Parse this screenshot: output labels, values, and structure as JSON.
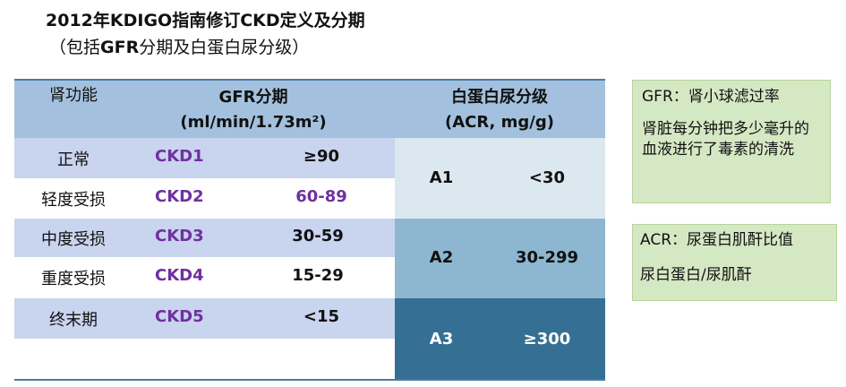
{
  "title": {
    "line1": "2012年KDIGO指南修订CKD定义及分期",
    "line2_pre": "（包括",
    "line2_bold": "GFR",
    "line2_post": "分期及白蛋白尿分级）"
  },
  "table": {
    "headers": {
      "kidney_function": "肾功能",
      "gfr_line1": "GFR分期",
      "gfr_line2": "(ml/min/1.73m²)",
      "acr_line1": "白蛋白尿分级",
      "acr_line2": "(ACR, mg/g)"
    },
    "gfr_rows": [
      {
        "function": "正常",
        "stage": "CKD1",
        "range": "≥90",
        "range_purple": false
      },
      {
        "function": "轻度受损",
        "stage": "CKD2",
        "range": "60-89",
        "range_purple": true
      },
      {
        "function": "中度受损",
        "stage": "CKD3",
        "range": "30-59",
        "range_purple": false
      },
      {
        "function": "重度受损",
        "stage": "CKD4",
        "range": "15-29",
        "range_purple": false
      },
      {
        "function": "终末期",
        "stage": "CKD5",
        "range": "<15",
        "range_purple": false
      }
    ],
    "acr_rows": [
      {
        "grade": "A1",
        "range": "<30"
      },
      {
        "grade": "A2",
        "range": "30-299"
      },
      {
        "grade": "A3",
        "range": "≥300"
      }
    ]
  },
  "notes": {
    "gfr": {
      "label": "GFR：肾小球滤过率",
      "desc": "肾脏每分钟把多少毫升的血液进行了毒素的清洗"
    },
    "acr": {
      "label": "ACR：尿蛋白肌酐比值",
      "desc": "尿白蛋白/尿肌酐"
    }
  },
  "colors": {
    "header_bg": "#a3c1de",
    "row_band": "#c9d4ee",
    "row_plain": "#ffffff",
    "a1_bg": "#dce8f0",
    "a2_bg": "#8db6d0",
    "a3_bg": "#356f93",
    "stage_purple": "#7030a0",
    "note_green": "#d5e8c4"
  }
}
